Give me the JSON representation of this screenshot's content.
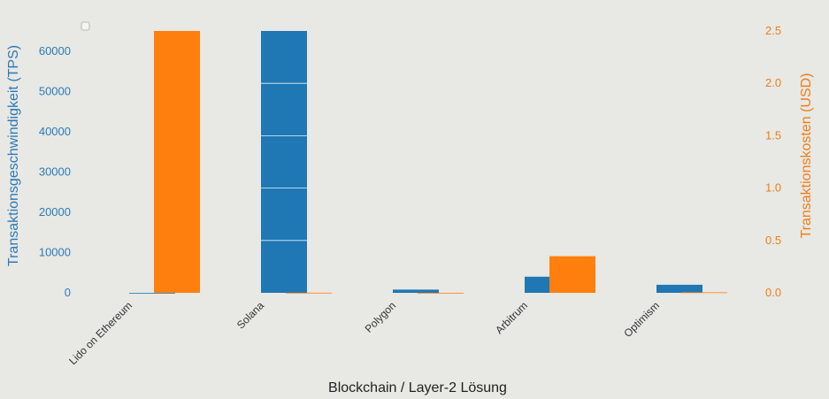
{
  "chart_data": {
    "type": "bar",
    "categories": [
      "Lido on Ethereum",
      "Solana",
      "Polygon",
      "Arbitrum",
      "Optimism"
    ],
    "xlabel": "Blockchain / Layer-2 Lösung",
    "series": [
      {
        "name": "",
        "axis": "left",
        "color": "#1f77b4",
        "values": [
          0,
          65000,
          800,
          4000,
          2000
        ]
      },
      {
        "name": "",
        "axis": "right",
        "color": "#ff7f0e",
        "values": [
          2.5,
          0.001,
          0.0005,
          0.35,
          0.005
        ]
      }
    ],
    "y_left": {
      "label": "Transaktionsgeschwindigkeit (TPS)",
      "range": [
        0,
        67000
      ],
      "ticks": [
        0,
        10000,
        20000,
        30000,
        40000,
        50000,
        60000
      ]
    },
    "y_right": {
      "label": "Transaktionskosten (USD)",
      "range": [
        0,
        2.55
      ],
      "ticks": [
        "0.0",
        "0.5",
        "1.0",
        "1.5",
        "2.0",
        "2.5"
      ]
    },
    "grid": false,
    "legend": "top-left"
  }
}
